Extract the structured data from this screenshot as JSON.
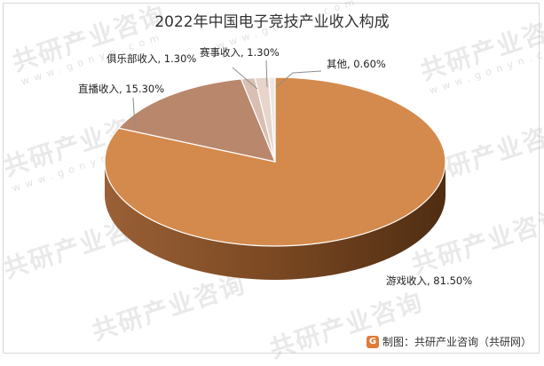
{
  "chart_data": {
    "type": "pie",
    "title": "2022年中国电子竞技产业收入构成",
    "slices": [
      {
        "label": "游戏收入",
        "value": 81.5,
        "display": "游戏收入, 81.50%",
        "color": "#D48A4C"
      },
      {
        "label": "直播收入",
        "value": 15.3,
        "display": "直播收入, 15.30%",
        "color": "#B9876C"
      },
      {
        "label": "俱乐部收入",
        "value": 1.3,
        "display": "俱乐部收入, 1.30%",
        "color": "#D9BFB2"
      },
      {
        "label": "赛事收入",
        "value": 1.3,
        "display": "赛事收入, 1.30%",
        "color": "#E7D4CB"
      },
      {
        "label": "其他",
        "value": 0.6,
        "display": "其他, 0.60%",
        "color": "#F1E6E0"
      }
    ],
    "style": "3d"
  },
  "watermark": {
    "brand": "共研产业咨询",
    "site": "www.gonyn.com"
  },
  "source": {
    "logo": "G",
    "text": "制图：共研产业咨询（共研网）"
  }
}
